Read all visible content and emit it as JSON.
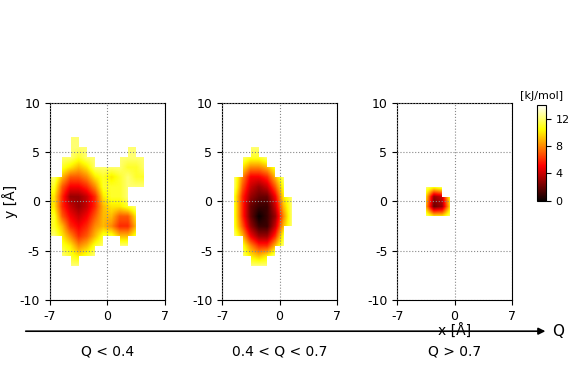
{
  "chart_data": [
    {
      "type": "heatmap",
      "caption": "Q < 0.4",
      "ylabel": "y [Å]",
      "xlim": [
        -7,
        7
      ],
      "ylim": [
        -10,
        10
      ],
      "xticks": [
        -7,
        0,
        7
      ],
      "yticks": [
        -10,
        -5,
        0,
        5,
        10
      ],
      "grid": true,
      "cells": [
        [
          null,
          null,
          null,
          null,
          null,
          null,
          null,
          null,
          null,
          null,
          null,
          null,
          null,
          null
        ],
        [
          null,
          null,
          null,
          null,
          null,
          null,
          null,
          null,
          null,
          null,
          null,
          null,
          null,
          null
        ],
        [
          null,
          null,
          null,
          null,
          null,
          null,
          null,
          null,
          null,
          null,
          null,
          null,
          null,
          null
        ],
        [
          null,
          null,
          12,
          12,
          null,
          null,
          null,
          null,
          null,
          null,
          null,
          null,
          null,
          null
        ],
        [
          null,
          12,
          11,
          10,
          11,
          12,
          null,
          null,
          null,
          null,
          null,
          null,
          null,
          null
        ],
        [
          null,
          11,
          10,
          8,
          9,
          11,
          12,
          null,
          12,
          12,
          null,
          null,
          null,
          null
        ],
        [
          12,
          10,
          8,
          6,
          7,
          9,
          11,
          11,
          9,
          9,
          11,
          null,
          null,
          null
        ],
        [
          11,
          9,
          6,
          5,
          6,
          8,
          9,
          8,
          6,
          6,
          9,
          12,
          null,
          null
        ],
        [
          11,
          7,
          5,
          4,
          5,
          7,
          9,
          9,
          7,
          7,
          10,
          null,
          null,
          null
        ],
        [
          10,
          6,
          4,
          3,
          4,
          6,
          9,
          10,
          10,
          11,
          12,
          null,
          null,
          null
        ],
        [
          10,
          6,
          3,
          3,
          4,
          6,
          10,
          11,
          11,
          12,
          null,
          null,
          null,
          null
        ],
        [
          11,
          7,
          5,
          5,
          6,
          8,
          11,
          11,
          11,
          12,
          12,
          12,
          null,
          null
        ],
        [
          12,
          9,
          7,
          7,
          8,
          10,
          11,
          10,
          11,
          12,
          11,
          11,
          12,
          null
        ],
        [
          null,
          11,
          10,
          9,
          10,
          12,
          12,
          12,
          12,
          11,
          11,
          12,
          null,
          null
        ],
        [
          null,
          12,
          12,
          11,
          12,
          12,
          null,
          null,
          12,
          12,
          12,
          12,
          null,
          null
        ],
        [
          null,
          null,
          12,
          12,
          12,
          null,
          null,
          null,
          null,
          12,
          12,
          null,
          null,
          null
        ],
        [
          null,
          null,
          12,
          12,
          null,
          null,
          null,
          null,
          null,
          null,
          null,
          null,
          null,
          null
        ],
        [
          null,
          null,
          null,
          12,
          12,
          null,
          null,
          null,
          null,
          null,
          null,
          null,
          null,
          null
        ],
        [
          null,
          null,
          null,
          null,
          null,
          null,
          null,
          null,
          null,
          null,
          null,
          null,
          null,
          null
        ],
        [
          null,
          null,
          null,
          null,
          null,
          null,
          null,
          null,
          null,
          null,
          null,
          null,
          null,
          null
        ]
      ]
    },
    {
      "type": "heatmap",
      "caption": "0.4 < Q < 0.7",
      "xlim": [
        -7,
        7
      ],
      "ylim": [
        -10,
        10
      ],
      "xticks": [
        -7,
        0,
        7
      ],
      "yticks": [
        -10,
        -5,
        0,
        5,
        10
      ],
      "grid": true,
      "cells": [
        [
          null,
          null,
          null,
          null,
          null,
          null,
          null,
          null,
          null,
          null,
          null,
          null,
          null,
          null
        ],
        [
          null,
          null,
          null,
          null,
          null,
          null,
          null,
          null,
          null,
          null,
          null,
          null,
          null,
          null
        ],
        [
          null,
          null,
          null,
          null,
          null,
          null,
          null,
          null,
          null,
          null,
          null,
          null,
          null,
          null
        ],
        [
          null,
          null,
          null,
          12,
          12,
          12,
          null,
          null,
          null,
          null,
          null,
          null,
          null,
          null
        ],
        [
          null,
          null,
          12,
          10,
          9,
          10,
          12,
          null,
          null,
          null,
          null,
          null,
          null,
          null
        ],
        [
          null,
          null,
          11,
          8,
          6,
          6,
          9,
          12,
          null,
          null,
          null,
          null,
          null,
          null
        ],
        [
          null,
          12,
          9,
          5,
          3,
          3,
          6,
          11,
          null,
          null,
          null,
          null,
          null,
          null
        ],
        [
          null,
          11,
          7,
          3,
          1,
          1,
          4,
          9,
          12,
          null,
          null,
          null,
          null,
          null
        ],
        [
          null,
          11,
          6,
          2,
          0,
          1,
          3,
          8,
          12,
          null,
          null,
          null,
          null,
          null
        ],
        [
          null,
          11,
          6,
          2,
          1,
          1,
          4,
          9,
          12,
          null,
          null,
          null,
          null,
          null
        ],
        [
          null,
          11,
          6,
          3,
          2,
          2,
          5,
          10,
          12,
          null,
          null,
          null,
          null,
          null
        ],
        [
          null,
          12,
          7,
          4,
          3,
          4,
          7,
          11,
          null,
          null,
          null,
          null,
          null,
          null
        ],
        [
          null,
          12,
          8,
          5,
          5,
          6,
          9,
          12,
          null,
          null,
          null,
          null,
          null,
          null
        ],
        [
          null,
          null,
          10,
          8,
          8,
          9,
          11,
          null,
          null,
          null,
          null,
          null,
          null,
          null
        ],
        [
          null,
          null,
          12,
          11,
          11,
          12,
          null,
          null,
          null,
          null,
          null,
          null,
          null,
          null
        ],
        [
          null,
          null,
          null,
          12,
          12,
          null,
          null,
          null,
          null,
          null,
          null,
          null,
          null,
          null
        ],
        [
          null,
          null,
          null,
          null,
          null,
          null,
          null,
          null,
          null,
          null,
          null,
          null,
          null,
          null
        ],
        [
          null,
          null,
          null,
          null,
          null,
          null,
          null,
          null,
          null,
          null,
          null,
          null,
          null,
          null
        ],
        [
          null,
          null,
          null,
          null,
          null,
          null,
          null,
          null,
          null,
          null,
          null,
          null,
          null,
          null
        ],
        [
          null,
          null,
          null,
          null,
          null,
          null,
          null,
          null,
          null,
          null,
          null,
          null,
          null,
          null
        ]
      ]
    },
    {
      "type": "heatmap",
      "caption": "Q > 0.7",
      "xlabel": "x [Å]",
      "xlim": [
        -7,
        7
      ],
      "ylim": [
        -10,
        10
      ],
      "xticks": [
        -7,
        0,
        7
      ],
      "yticks": [
        -10,
        -5,
        0,
        5,
        10
      ],
      "grid": true,
      "colorbar": {
        "label": "[kJ/mol]",
        "lim": [
          0,
          14
        ],
        "ticks": [
          0,
          4,
          8,
          12
        ]
      },
      "cells": [
        [
          null,
          null,
          null,
          null,
          null,
          null,
          null,
          null,
          null,
          null,
          null,
          null,
          null,
          null
        ],
        [
          null,
          null,
          null,
          null,
          null,
          null,
          null,
          null,
          null,
          null,
          null,
          null,
          null,
          null
        ],
        [
          null,
          null,
          null,
          null,
          null,
          null,
          null,
          null,
          null,
          null,
          null,
          null,
          null,
          null
        ],
        [
          null,
          null,
          null,
          null,
          null,
          null,
          null,
          null,
          null,
          null,
          null,
          null,
          null,
          null
        ],
        [
          null,
          null,
          null,
          null,
          null,
          null,
          null,
          null,
          null,
          null,
          null,
          null,
          null,
          null
        ],
        [
          null,
          null,
          null,
          null,
          null,
          null,
          null,
          null,
          null,
          null,
          null,
          null,
          null,
          null
        ],
        [
          null,
          null,
          null,
          null,
          null,
          null,
          null,
          null,
          null,
          null,
          null,
          null,
          null,
          null
        ],
        [
          null,
          null,
          null,
          null,
          null,
          null,
          null,
          null,
          null,
          null,
          null,
          null,
          null,
          null
        ],
        [
          null,
          null,
          null,
          12,
          10,
          10,
          12,
          null,
          null,
          null,
          null,
          null,
          null,
          null
        ],
        [
          null,
          null,
          null,
          9,
          2,
          3,
          10,
          null,
          null,
          null,
          null,
          null,
          null,
          null
        ],
        [
          null,
          null,
          null,
          10,
          3,
          4,
          11,
          null,
          null,
          null,
          null,
          null,
          null,
          null
        ],
        [
          null,
          null,
          null,
          12,
          11,
          12,
          null,
          null,
          null,
          null,
          null,
          null,
          null,
          null
        ],
        [
          null,
          null,
          null,
          null,
          null,
          null,
          null,
          null,
          null,
          null,
          null,
          null,
          null,
          null
        ],
        [
          null,
          null,
          null,
          null,
          null,
          null,
          null,
          null,
          null,
          null,
          null,
          null,
          null,
          null
        ],
        [
          null,
          null,
          null,
          null,
          null,
          null,
          null,
          null,
          null,
          null,
          null,
          null,
          null,
          null
        ],
        [
          null,
          null,
          null,
          null,
          null,
          null,
          null,
          null,
          null,
          null,
          null,
          null,
          null,
          null
        ],
        [
          null,
          null,
          null,
          null,
          null,
          null,
          null,
          null,
          null,
          null,
          null,
          null,
          null,
          null
        ],
        [
          null,
          null,
          null,
          null,
          null,
          null,
          null,
          null,
          null,
          null,
          null,
          null,
          null,
          null
        ],
        [
          null,
          null,
          null,
          null,
          null,
          null,
          null,
          null,
          null,
          null,
          null,
          null,
          null,
          null
        ],
        [
          null,
          null,
          null,
          null,
          null,
          null,
          null,
          null,
          null,
          null,
          null,
          null,
          null,
          null
        ]
      ]
    }
  ],
  "arrow_label": "Q"
}
